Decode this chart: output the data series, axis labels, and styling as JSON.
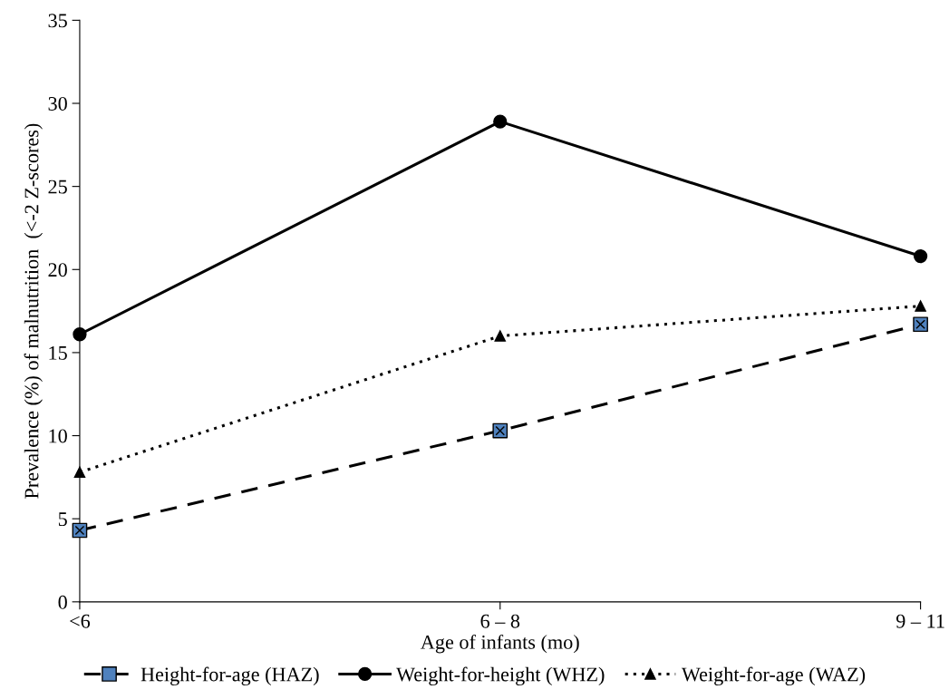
{
  "chart_data": {
    "type": "line",
    "xlabel": "Age of infants (mo)",
    "ylabel": "Prevalence (%) of malnutrition  (<-2 Z-scores)",
    "categories": [
      "<6",
      "6 – 8",
      "9 – 11"
    ],
    "series": [
      {
        "name": "Height-for-age (HAZ)",
        "color": "#000000",
        "colors": [
          "#4f81bd",
          "#4f81bd",
          "#4f81bd"
        ],
        "values": [
          4.3,
          10.3,
          16.7
        ],
        "marker": "square",
        "line_style": "dashed"
      },
      {
        "name": "Weight-for-height (WHZ)",
        "color": "#000000",
        "values": [
          16.1,
          28.9,
          20.8
        ],
        "marker": "circle",
        "line_style": "solid"
      },
      {
        "name": "Weight-for-age (WAZ)",
        "color": "#000000",
        "values": [
          7.8,
          16.0,
          17.8
        ],
        "marker": "triangle",
        "line_style": "dotted"
      }
    ],
    "ylim": [
      0,
      35
    ],
    "yticks": [
      0,
      5,
      10,
      15,
      20,
      25,
      30,
      35
    ],
    "grid": false,
    "legend": "bottom"
  }
}
